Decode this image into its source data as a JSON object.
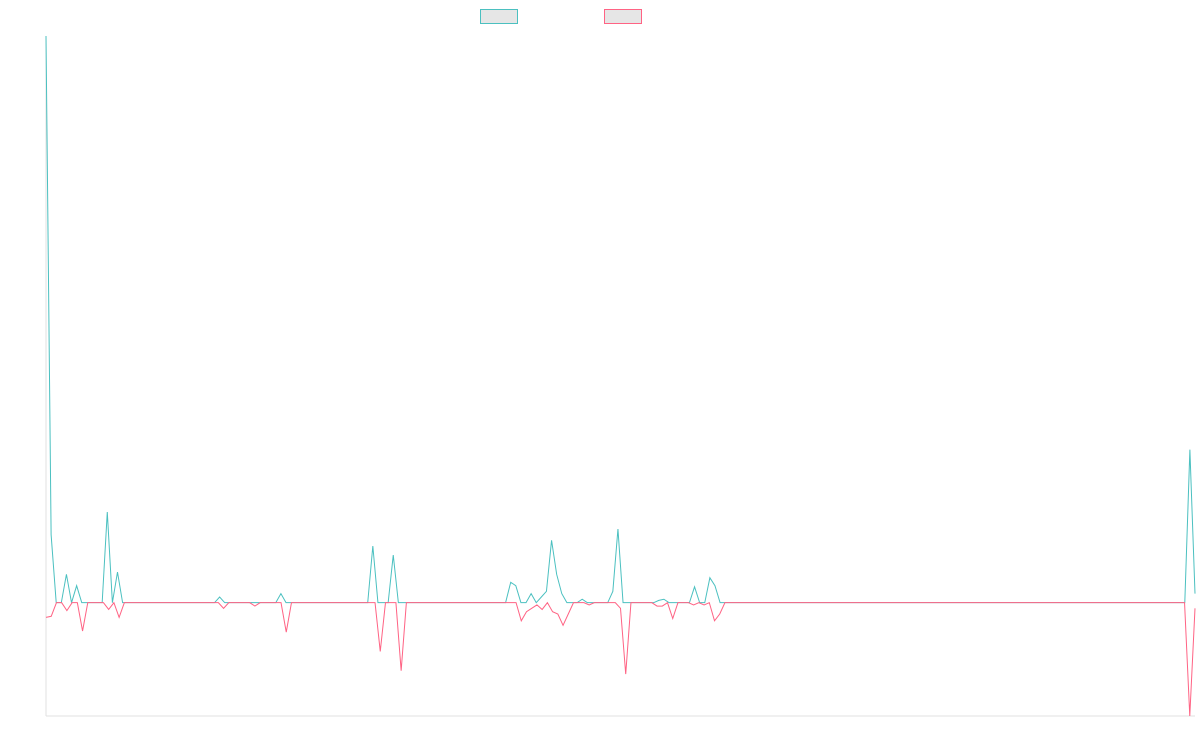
{
  "chart_data": {
    "type": "line",
    "title": "",
    "xlabel": "",
    "ylabel": "",
    "ylim": [
      -1,
      5
    ],
    "grid": false,
    "legend_position": "top-center",
    "series": [
      {
        "name": "",
        "color": "#4bc0c0",
        "values": [
          5.0,
          0.6,
          0.0,
          0.0,
          0.25,
          0.0,
          0.15,
          0.0,
          0.0,
          0.0,
          0.0,
          0.0,
          0.8,
          0.0,
          0.27,
          0.0,
          0.0,
          0.0,
          0.0,
          0.0,
          0.0,
          0.0,
          0.0,
          0.0,
          0.0,
          0.0,
          0.0,
          0.0,
          0.0,
          0.0,
          0.0,
          0.0,
          0.0,
          0.0,
          0.05,
          0.0,
          0.0,
          0.0,
          0.0,
          0.0,
          0.0,
          0.0,
          0.0,
          0.0,
          0.0,
          0.0,
          0.08,
          0.0,
          0.0,
          0.0,
          0.0,
          0.0,
          0.0,
          0.0,
          0.0,
          0.0,
          0.0,
          0.0,
          0.0,
          0.0,
          0.0,
          0.0,
          0.0,
          0.0,
          0.5,
          0.0,
          0.0,
          0.0,
          0.42,
          0.0,
          0.0,
          0.0,
          0.0,
          0.0,
          0.0,
          0.0,
          0.0,
          0.0,
          0.0,
          0.0,
          0.0,
          0.0,
          0.0,
          0.0,
          0.0,
          0.0,
          0.0,
          0.0,
          0.0,
          0.0,
          0.0,
          0.18,
          0.15,
          0.0,
          0.0,
          0.08,
          0.0,
          0.05,
          0.1,
          0.55,
          0.25,
          0.08,
          0.0,
          0.0,
          0.0,
          0.03,
          0.0,
          0.0,
          0.0,
          0.0,
          0.0,
          0.1,
          0.65,
          0.0,
          0.0,
          0.0,
          0.0,
          0.0,
          0.0,
          0.0,
          0.02,
          0.03,
          0.0,
          0.0,
          0.0,
          0.0,
          0.0,
          0.14,
          0.0,
          0.0,
          0.22,
          0.15,
          0.0,
          0.0,
          0.0,
          0.0,
          0.0,
          0.0,
          0.0,
          0.0,
          0.0,
          0.0,
          0.0,
          0.0,
          0.0,
          0.0,
          0.0,
          0.0,
          0.0,
          0.0,
          0.0,
          0.0,
          0.0,
          0.0,
          0.0,
          0.0,
          0.0,
          0.0,
          0.0,
          0.0,
          0.0,
          0.0,
          0.0,
          0.0,
          0.0,
          0.0,
          0.0,
          0.0,
          0.0,
          0.0,
          0.0,
          0.0,
          0.0,
          0.0,
          0.0,
          0.0,
          0.0,
          0.0,
          0.0,
          0.0,
          0.0,
          0.0,
          0.0,
          0.0,
          0.0,
          0.0,
          0.0,
          0.0,
          0.0,
          0.0,
          0.0,
          0.0,
          0.0,
          0.0,
          0.0,
          0.0,
          0.0,
          0.0,
          0.0,
          0.0,
          0.0,
          0.0,
          0.0,
          0.0,
          0.0,
          0.0,
          0.0,
          0.0,
          0.0,
          0.0,
          0.0,
          0.0,
          0.0,
          0.0,
          0.0,
          0.0,
          0.0,
          0.0,
          0.0,
          0.0,
          0.0,
          0.0,
          0.0,
          0.0,
          1.35,
          0.08
        ]
      },
      {
        "name": "",
        "color": "#ff6384",
        "values": [
          -0.13,
          -0.12,
          0.0,
          0.0,
          -0.07,
          0.0,
          0.0,
          -0.25,
          0.0,
          0.0,
          0.0,
          0.0,
          -0.06,
          0.0,
          -0.13,
          0.0,
          0.0,
          0.0,
          0.0,
          0.0,
          0.0,
          0.0,
          0.0,
          0.0,
          0.0,
          0.0,
          0.0,
          0.0,
          0.0,
          0.0,
          0.0,
          0.0,
          0.0,
          0.0,
          -0.05,
          0.0,
          0.0,
          0.0,
          0.0,
          0.0,
          -0.03,
          0.0,
          0.0,
          0.0,
          0.0,
          0.0,
          -0.26,
          0.0,
          0.0,
          0.0,
          0.0,
          0.0,
          0.0,
          0.0,
          0.0,
          0.0,
          0.0,
          0.0,
          0.0,
          0.0,
          0.0,
          0.0,
          0.0,
          0.0,
          -0.43,
          0.0,
          0.0,
          0.0,
          -0.6,
          0.0,
          0.0,
          0.0,
          0.0,
          0.0,
          0.0,
          0.0,
          0.0,
          0.0,
          0.0,
          0.0,
          0.0,
          0.0,
          0.0,
          0.0,
          0.0,
          0.0,
          0.0,
          0.0,
          0.0,
          0.0,
          0.0,
          -0.16,
          -0.08,
          -0.05,
          -0.02,
          -0.06,
          0.0,
          -0.08,
          -0.1,
          -0.2,
          -0.1,
          0.0,
          0.0,
          0.0,
          -0.02,
          0.0,
          0.0,
          0.0,
          0.0,
          0.0,
          -0.05,
          -0.63,
          0.0,
          0.0,
          0.0,
          0.0,
          0.0,
          -0.03,
          -0.03,
          0.0,
          -0.14,
          0.0,
          0.0,
          0.0,
          -0.02,
          0.0,
          -0.02,
          0.0,
          -0.16,
          -0.1,
          0.0,
          0.0,
          0.0,
          0.0,
          0.0,
          0.0,
          0.0,
          0.0,
          0.0,
          0.0,
          0.0,
          0.0,
          0.0,
          0.0,
          0.0,
          0.0,
          0.0,
          0.0,
          0.0,
          0.0,
          0.0,
          0.0,
          0.0,
          0.0,
          0.0,
          0.0,
          0.0,
          0.0,
          0.0,
          0.0,
          0.0,
          0.0,
          0.0,
          0.0,
          0.0,
          0.0,
          0.0,
          0.0,
          0.0,
          0.0,
          0.0,
          0.0,
          0.0,
          0.0,
          0.0,
          0.0,
          0.0,
          0.0,
          0.0,
          0.0,
          0.0,
          0.0,
          0.0,
          0.0,
          0.0,
          0.0,
          0.0,
          0.0,
          0.0,
          0.0,
          0.0,
          0.0,
          0.0,
          0.0,
          0.0,
          0.0,
          0.0,
          0.0,
          0.0,
          0.0,
          0.0,
          0.0,
          0.0,
          0.0,
          0.0,
          0.0,
          0.0,
          0.0,
          0.0,
          0.0,
          0.0,
          0.0,
          0.0,
          0.0,
          0.0,
          0.0,
          0.0,
          0.0,
          0.0,
          -1.0,
          -0.05
        ]
      }
    ]
  }
}
